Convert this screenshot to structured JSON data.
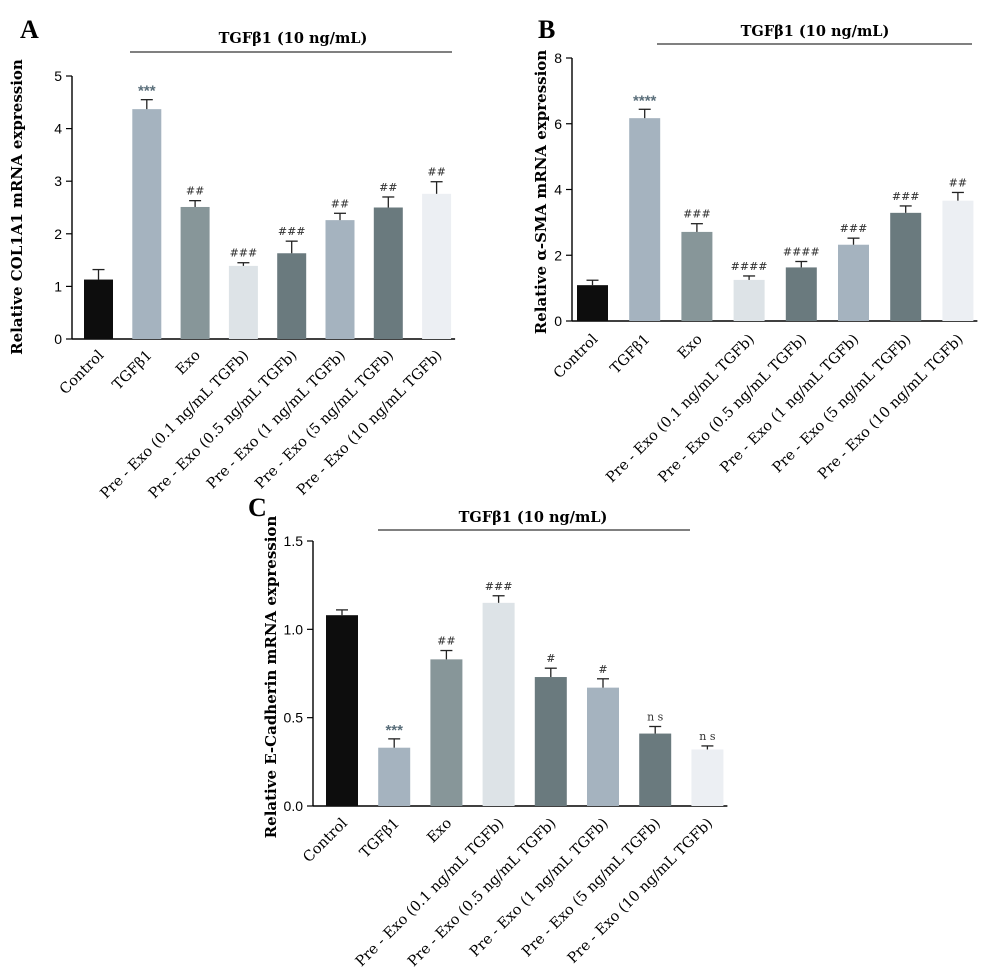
{
  "chart_data": [
    {
      "panel": "A",
      "type": "bar",
      "ylabel": "Relative COL1A1 mRNA expression",
      "bracket_label": "TGFβ1 (10 ng/mL)",
      "ylim": [
        0,
        5
      ],
      "yticks": [
        "0",
        "1",
        "2",
        "3",
        "4",
        "5"
      ],
      "categories": [
        "Control",
        "TGFβ1",
        "Exo",
        "Pre - Exo (0.1 ng/mL TGFb)",
        "Pre - Exo (0.5 ng/mL TGFb)",
        "Pre - Exo (1 ng/mL TGFb)",
        "Pre - Exo (5 ng/mL TGFb)",
        "Pre - Exo (10 ng/mL TGFb)"
      ],
      "values": [
        1.13,
        4.37,
        2.51,
        1.39,
        1.63,
        2.26,
        2.5,
        2.76
      ],
      "errors": [
        0.19,
        0.18,
        0.12,
        0.06,
        0.23,
        0.13,
        0.2,
        0.23
      ],
      "significance": [
        "",
        "***",
        "##",
        "###",
        "###",
        "##",
        "##",
        "##"
      ],
      "bar_colors": [
        "#0d0d0d",
        "#a5b3bf",
        "#879699",
        "#dde3e7",
        "#6a7a7e",
        "#a5b3bf",
        "#6a7a7e",
        "#eceff3"
      ]
    },
    {
      "panel": "B",
      "type": "bar",
      "ylabel": "Relative α-SMA mRNA expression",
      "bracket_label": "TGFβ1 (10 ng/mL)",
      "ylim": [
        0,
        8
      ],
      "yticks": [
        "0",
        "2",
        "4",
        "6",
        "8"
      ],
      "categories": [
        "Control",
        "TGFβ1",
        "Exo",
        "Pre - Exo (0.1 ng/mL TGFb)",
        "Pre - Exo (0.5 ng/mL TGFb)",
        "Pre - Exo (1 ng/mL TGFb)",
        "Pre - Exo (5 ng/mL TGFb)",
        "Pre - Exo (10 ng/mL TGFb)"
      ],
      "values": [
        1.09,
        6.17,
        2.71,
        1.25,
        1.63,
        2.32,
        3.29,
        3.66
      ],
      "errors": [
        0.15,
        0.27,
        0.25,
        0.12,
        0.18,
        0.2,
        0.21,
        0.25
      ],
      "significance": [
        "",
        "****",
        "###",
        "####",
        "####",
        "###",
        "###",
        "##"
      ],
      "bar_colors": [
        "#0d0d0d",
        "#a5b3bf",
        "#879699",
        "#dde3e7",
        "#6a7a7e",
        "#a5b3bf",
        "#6a7a7e",
        "#eceff3"
      ]
    },
    {
      "panel": "C",
      "type": "bar",
      "ylabel": "Relative E-Cadherin mRNA expression",
      "bracket_label": "TGFβ1 (10 ng/mL)",
      "ylim": [
        0,
        1.5
      ],
      "yticks": [
        "0.0",
        "0.5",
        "1.0",
        "1.5"
      ],
      "categories": [
        "Control",
        "TGFβ1",
        "Exo",
        "Pre - Exo (0.1 ng/mL TGFb)",
        "Pre - Exo (0.5 ng/mL TGFb)",
        "Pre - Exo (1 ng/mL TGFb)",
        "Pre - Exo (5 ng/mL TGFb)",
        "Pre - Exo (10 ng/mL TGFb)"
      ],
      "values": [
        1.08,
        0.33,
        0.83,
        1.15,
        0.73,
        0.67,
        0.41,
        0.32
      ],
      "errors": [
        0.03,
        0.05,
        0.05,
        0.04,
        0.05,
        0.05,
        0.04,
        0.02
      ],
      "significance": [
        "",
        "***",
        "##",
        "###",
        "#",
        "#",
        "n s",
        "n s"
      ],
      "bar_colors": [
        "#0d0d0d",
        "#a5b3bf",
        "#879699",
        "#dde3e7",
        "#6a7a7e",
        "#a5b3bf",
        "#6a7a7e",
        "#eceff3"
      ]
    }
  ]
}
